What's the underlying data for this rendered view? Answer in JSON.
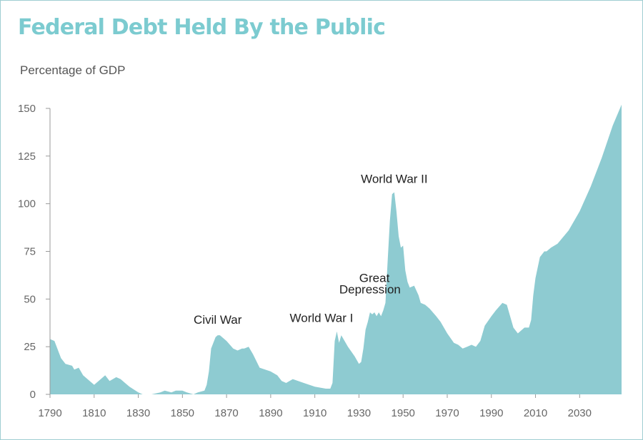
{
  "chart_data": {
    "type": "area",
    "title": "Federal Debt Held By the Public",
    "subtitle": "Percentage of GDP",
    "xlabel": "",
    "ylabel": "",
    "xlim": [
      1790,
      2049
    ],
    "ylim": [
      0,
      150
    ],
    "grid": false,
    "fill_color": "#8ecbd1",
    "title_color": "#7ccbd0",
    "x_ticks": [
      1790,
      1810,
      1830,
      1850,
      1870,
      1890,
      1910,
      1930,
      1950,
      1970,
      1990,
      2010,
      2030
    ],
    "y_ticks": [
      0,
      25,
      50,
      75,
      100,
      125,
      150
    ],
    "series": [
      {
        "x": [
          1790,
          1792,
          1795,
          1797,
          1800,
          1801,
          1803,
          1805,
          1807,
          1810,
          1812,
          1815,
          1817,
          1820,
          1822,
          1824,
          1826,
          1830,
          1832,
          1834,
          1836,
          1840,
          1842,
          1845,
          1847,
          1850,
          1852,
          1855,
          1857,
          1860,
          1861,
          1862,
          1863,
          1865,
          1866,
          1867,
          1870,
          1873,
          1875,
          1877,
          1878,
          1880,
          1882,
          1885,
          1890,
          1893,
          1895,
          1897,
          1900,
          1905,
          1910,
          1915,
          1917,
          1918,
          1919,
          1920,
          1921,
          1922,
          1925,
          1928,
          1930,
          1931,
          1932,
          1933,
          1934,
          1935,
          1936,
          1937,
          1938,
          1939,
          1940,
          1941,
          1942,
          1943,
          1944,
          1945,
          1946,
          1947,
          1948,
          1949,
          1950,
          1951,
          1952,
          1953,
          1955,
          1957,
          1958,
          1960,
          1962,
          1965,
          1967,
          1970,
          1973,
          1975,
          1977,
          1979,
          1981,
          1983,
          1985,
          1987,
          1990,
          1992,
          1995,
          1997,
          2000,
          2002,
          2005,
          2007,
          2008,
          2009,
          2010,
          2012,
          2014,
          2015,
          2017,
          2020,
          2025,
          2030,
          2035,
          2040,
          2045,
          2049
        ],
        "y": [
          29,
          28,
          19,
          16,
          15,
          13,
          14,
          10,
          8,
          5,
          7,
          10,
          7,
          9,
          8,
          6,
          4,
          1,
          0,
          0,
          0,
          1,
          2,
          1,
          2,
          2,
          1,
          0,
          1,
          2,
          5,
          12,
          24,
          30,
          31,
          31,
          28,
          24,
          23,
          24,
          24,
          25,
          21,
          14,
          12,
          10,
          7,
          6,
          8,
          6,
          4,
          3,
          3,
          6,
          28,
          33,
          27,
          31,
          25,
          20,
          16,
          17,
          24,
          34,
          38,
          43,
          42,
          43,
          41,
          43,
          41,
          44,
          48,
          70,
          91,
          105,
          106,
          96,
          83,
          77,
          78,
          65,
          59,
          56,
          57,
          52,
          48,
          47,
          45,
          41,
          38,
          32,
          27,
          26,
          24,
          25,
          26,
          25,
          28,
          36,
          41,
          44,
          48,
          47,
          35,
          32,
          35,
          35,
          39,
          52,
          61,
          72,
          75,
          75,
          77,
          79,
          86,
          96,
          109,
          124,
          141,
          152
        ]
      }
    ],
    "annotations": [
      {
        "text": "Civil War",
        "x": 1866,
        "y": 37
      },
      {
        "text": "World War I",
        "x": 1913,
        "y": 38
      },
      {
        "text": "Great",
        "x": 1937,
        "y": 59
      },
      {
        "text": "Depression",
        "x": 1935,
        "y": 53
      },
      {
        "text": "World War II",
        "x": 1946,
        "y": 111
      }
    ]
  }
}
